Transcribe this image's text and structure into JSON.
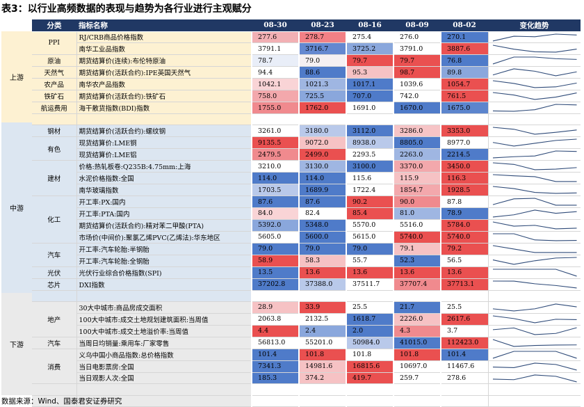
{
  "title": "表3：以行业高频数据的表现与趋势为各行业进行主观赋分",
  "headers": {
    "category": "分类",
    "indicator": "指标名称",
    "dates": [
      "08-30",
      "08-23",
      "08-16",
      "08-09",
      "08-02"
    ],
    "trend": "变化趋势"
  },
  "colors": {
    "header": "#203864",
    "upstream": "#fdf1d2",
    "midstream": "#dce6f1",
    "downstream": "#eaeaea",
    "trend_line": "#2e4a78"
  },
  "segments": [
    {
      "label": "上游",
      "rows": 8
    },
    {
      "label": "中游",
      "rows": 15
    },
    {
      "label": "下游",
      "rows": 9
    }
  ],
  "rows": [
    {
      "cat": "PPI",
      "indicator": "RJ/CRB商品价格指数",
      "values": [
        "277.6",
        "278.7",
        "275.4",
        "276.0",
        "270.1"
      ],
      "colors": [
        "#f2b0b4",
        "#f28085",
        "#ffffff",
        "#ffffff",
        "#4f7bc9"
      ]
    },
    {
      "cat": "",
      "indicator": "南华工业品指数",
      "values": [
        "3791.1",
        "3716.7",
        "3725.2",
        "3791.0",
        "3887.6"
      ],
      "colors": [
        "#ffffff",
        "#6488d0",
        "#8aa7dc",
        "#ffffff",
        "#ea5252"
      ]
    },
    {
      "cat": "原油",
      "indicator": "期货结算价(连续):布伦特原油",
      "values": [
        "78.7",
        "79.0",
        "79.7",
        "79.7",
        "76.8"
      ],
      "colors": [
        "#e9eef8",
        "#f5f0f2",
        "#ea5050",
        "#ea5050",
        "#4f7bc9"
      ]
    },
    {
      "cat": "天然气",
      "indicator": "期货结算价(活跃合约):IPE英国天然气",
      "values": [
        "94.4",
        "88.6",
        "95.3",
        "98.7",
        "89.8"
      ],
      "colors": [
        "#ffffff",
        "#4f7bc9",
        "#f6c2c4",
        "#ea5050",
        "#8aa7dc"
      ]
    },
    {
      "cat": "农产品",
      "indicator": "南华农产品指数",
      "values": [
        "1042.1",
        "1021.3",
        "1017.1",
        "1039.6",
        "1054.7"
      ],
      "colors": [
        "#f9d4d6",
        "#9fb6e2",
        "#4f7bc9",
        "#ffffff",
        "#ea5050"
      ]
    },
    {
      "cat": "铁矿石",
      "indicator": "期货结算价(活跃合约):铁矿石",
      "values": [
        "758.0",
        "725.5",
        "707.0",
        "742.0",
        "761.5"
      ],
      "colors": [
        "#f3a8ac",
        "#8aa7dc",
        "#4f7bc9",
        "#ffffff",
        "#ea5050"
      ]
    },
    {
      "cat": "航运费用",
      "indicator": "海干散货指数(BDI)指数",
      "values": [
        "1755.0",
        "1762.0",
        "1691.0",
        "1670.0",
        "1675.0"
      ],
      "colors": [
        "#f08a8e",
        "#ea5050",
        "#ffffff",
        "#4f7bc9",
        "#5c85cd"
      ]
    },
    {
      "cat": "",
      "indicator": "",
      "values": [
        "",
        "",
        "",
        "",
        ""
      ],
      "colors": [
        "#ffffff",
        "#ffffff",
        "#ffffff",
        "#ffffff",
        "#ffffff"
      ]
    },
    {
      "cat": "钢材",
      "indicator": "期货结算价(活跃合约):螺纹钢",
      "values": [
        "3261.0",
        "3180.0",
        "3112.0",
        "3286.0",
        "3353.0"
      ],
      "colors": [
        "#ffffff",
        "#b9c9ea",
        "#4f7bc9",
        "#f6c4c6",
        "#ea5050"
      ]
    },
    {
      "cat": "有色",
      "indicator": "现货结算价:LME铜",
      "values": [
        "9135.5",
        "9072.0",
        "8938.0",
        "8805.0",
        "8977.0"
      ],
      "colors": [
        "#ea5050",
        "#f6c2c4",
        "#b9c9ea",
        "#4f7bc9",
        "#ffffff"
      ]
    },
    {
      "cat": "",
      "indicator": "现货结算价:LME铝",
      "values": [
        "2479.5",
        "2499.0",
        "2293.5",
        "2263.0",
        "2214.5"
      ],
      "colors": [
        "#f08a8e",
        "#ea5050",
        "#ffffff",
        "#9fb6e2",
        "#4f7bc9"
      ]
    },
    {
      "cat": "建材",
      "indicator": "价格:热轧板卷:Q235B:4.75mm:上海",
      "values": [
        "3210.0",
        "3130.0",
        "3100.0",
        "3370.0",
        "3450.0"
      ],
      "colors": [
        "#ffffff",
        "#9fb6e2",
        "#4f7bc9",
        "#f3a8ac",
        "#ea5050"
      ]
    },
    {
      "cat": "",
      "indicator": "水泥价格指数:全国",
      "values": [
        "114.0",
        "114.0",
        "115.6",
        "115.9",
        "116.3"
      ],
      "colors": [
        "#4f7bc9",
        "#4f7bc9",
        "#ffffff",
        "#f6c2c4",
        "#ea5050"
      ]
    },
    {
      "cat": "",
      "indicator": "南华玻璃指数",
      "values": [
        "1703.5",
        "1689.9",
        "1722.4",
        "1854.7",
        "1928.5"
      ],
      "colors": [
        "#b9c9ea",
        "#4f7bc9",
        "#ffffff",
        "#f3a8ac",
        "#ea5050"
      ]
    },
    {
      "cat": "化工",
      "indicator": "开工率:PX:国内",
      "values": [
        "87.6",
        "87.6",
        "90.2",
        "90.0",
        "87.8"
      ],
      "colors": [
        "#4f7bc9",
        "#4f7bc9",
        "#ea5050",
        "#f08a8e",
        "#ffffff"
      ]
    },
    {
      "cat": "",
      "indicator": "开工率:PTA:国内",
      "values": [
        "84.0",
        "82.4",
        "85.4",
        "81.0",
        "78.9"
      ],
      "colors": [
        "#f9d4d6",
        "#ffffff",
        "#ea5050",
        "#9fb6e2",
        "#4f7bc9"
      ]
    },
    {
      "cat": "",
      "indicator": "期货结算价(活跃合约):精对苯二甲酸(PTA)",
      "values": [
        "5392.0",
        "5348.0",
        "5570.0",
        "5516.0",
        "5784.0"
      ],
      "colors": [
        "#8aa7dc",
        "#4f7bc9",
        "#ffffff",
        "#ffffff",
        "#ea5050"
      ]
    },
    {
      "cat": "",
      "indicator": "市场价(中间价):聚氯乙烯PVC(乙烯法):华东地区",
      "values": [
        "5605.0",
        "5600.0",
        "5615.0",
        "5740.0",
        "5740.0"
      ],
      "colors": [
        "#ffffff",
        "#4f7bc9",
        "#ffffff",
        "#ea5050",
        "#ea5050"
      ]
    },
    {
      "cat": "汽车",
      "indicator": "开工率:汽车轮胎:半钢胎",
      "values": [
        "79.0",
        "79.0",
        "79.0",
        "79.1",
        "79.2"
      ],
      "colors": [
        "#4f7bc9",
        "#4f7bc9",
        "#4f7bc9",
        "#f6c2c4",
        "#ea5050"
      ]
    },
    {
      "cat": "",
      "indicator": "开工率:汽车轮胎:全钢胎",
      "values": [
        "58.9",
        "58.3",
        "55.7",
        "52.3",
        "56.5"
      ],
      "colors": [
        "#ea5050",
        "#f6c2c4",
        "#ffffff",
        "#4f7bc9",
        "#ffffff"
      ]
    },
    {
      "cat": "光伏",
      "indicator": "光伏行业综合价格指数(SPI)",
      "values": [
        "13.5",
        "13.6",
        "13.6",
        "13.6",
        "13.6"
      ],
      "colors": [
        "#4f7bc9",
        "#ea5050",
        "#ea5050",
        "#ea5050",
        "#ea5050"
      ]
    },
    {
      "cat": "芯片",
      "indicator": "DXI指数",
      "values": [
        "37202.8",
        "37388.0",
        "37511.7",
        "37707.4",
        "37713.1"
      ],
      "colors": [
        "#4f7bc9",
        "#b9c9ea",
        "#ffffff",
        "#f08a8e",
        "#ea5050"
      ]
    },
    {
      "cat": "",
      "indicator": "",
      "values": [
        "",
        "",
        "",
        "",
        ""
      ],
      "colors": [
        "#ffffff",
        "#ffffff",
        "#ffffff",
        "#ffffff",
        "#ffffff"
      ]
    },
    {
      "cat": "地产",
      "indicator": "30大中城市:商品房成交面积",
      "values": [
        "28.9",
        "33.9",
        "25.5",
        "21.7",
        "25.5"
      ],
      "colors": [
        "#f6c2c4",
        "#ea5050",
        "#ffffff",
        "#4f7bc9",
        "#ffffff"
      ]
    },
    {
      "cat": "",
      "indicator": "100大中城市:成交土地规划建筑面积:当周值",
      "values": [
        "2063.8",
        "2132.5",
        "1618.7",
        "2226.0",
        "2617.6"
      ],
      "colors": [
        "#ffffff",
        "#ffffff",
        "#4f7bc9",
        "#f6c2c4",
        "#ea5050"
      ]
    },
    {
      "cat": "",
      "indicator": "100大中城市:成交土地溢价率:当周值",
      "values": [
        "4.4",
        "2.4",
        "2.0",
        "4.3",
        "3.7"
      ],
      "colors": [
        "#ea5050",
        "#8aa7dc",
        "#4f7bc9",
        "#f08a8e",
        "#ffffff"
      ]
    },
    {
      "cat": "汽车",
      "indicator": "当周日均销量:乘用车:厂家零售",
      "values": [
        "56813.0",
        "55201.0",
        "50984.0",
        "41015.0",
        "112423.0"
      ],
      "colors": [
        "#ffffff",
        "#ffffff",
        "#b9c9ea",
        "#4f7bc9",
        "#ea5050"
      ]
    },
    {
      "cat": "消费",
      "indicator": "义乌中国小商品指数:总价格指数",
      "values": [
        "101.4",
        "101.8",
        "101.8",
        "101.8",
        "101.4"
      ],
      "colors": [
        "#4f7bc9",
        "#ea5050",
        "#ffffff",
        "#ea5050",
        "#4f7bc9"
      ]
    },
    {
      "cat": "",
      "indicator": "当日电影票房:全国",
      "values": [
        "7341.3",
        "14981.6",
        "16815.6",
        "10697.0",
        "11467.6"
      ],
      "colors": [
        "#4f7bc9",
        "#f6c2c4",
        "#ea5050",
        "#ffffff",
        "#ffffff"
      ]
    },
    {
      "cat": "",
      "indicator": "当日观影人次:全国",
      "values": [
        "185.3",
        "374.2",
        "419.7",
        "259.7",
        "278.6"
      ],
      "colors": [
        "#4f7bc9",
        "#f6c2c4",
        "#ea5050",
        "#ffffff",
        "#ffffff"
      ]
    },
    {
      "cat": "",
      "indicator": "",
      "values": [
        "",
        "",
        "",
        "",
        ""
      ],
      "colors": [
        "#ffffff",
        "#ffffff",
        "#ffffff",
        "#ffffff",
        "#ffffff"
      ]
    },
    {
      "cat": "",
      "indicator": "",
      "values": [
        "",
        "",
        "",
        "",
        ""
      ],
      "colors": [
        "#ffffff",
        "#ffffff",
        "#ffffff",
        "#ffffff",
        "#ffffff"
      ]
    }
  ],
  "source": "数据来源：Wind、国泰君安证券研究"
}
